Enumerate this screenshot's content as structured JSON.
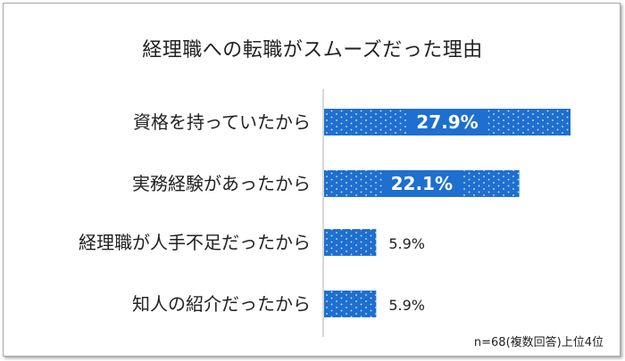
{
  "chart_data": {
    "type": "bar",
    "orientation": "horizontal",
    "title": "経理職への転職がスムーズだった理由",
    "categories": [
      "資格を持っていたから",
      "実務経験があったから",
      "経理職が人手不足だったから",
      "知人の紹介だったから"
    ],
    "values": [
      27.9,
      22.1,
      5.9,
      5.9
    ],
    "value_labels": [
      "27.9%",
      "22.1%",
      "5.9%",
      "5.9%"
    ],
    "xlim": [
      0,
      30
    ],
    "grid": false,
    "bar_color": "#1e6fcf",
    "note": "n=68(複数回答)上位4位"
  }
}
